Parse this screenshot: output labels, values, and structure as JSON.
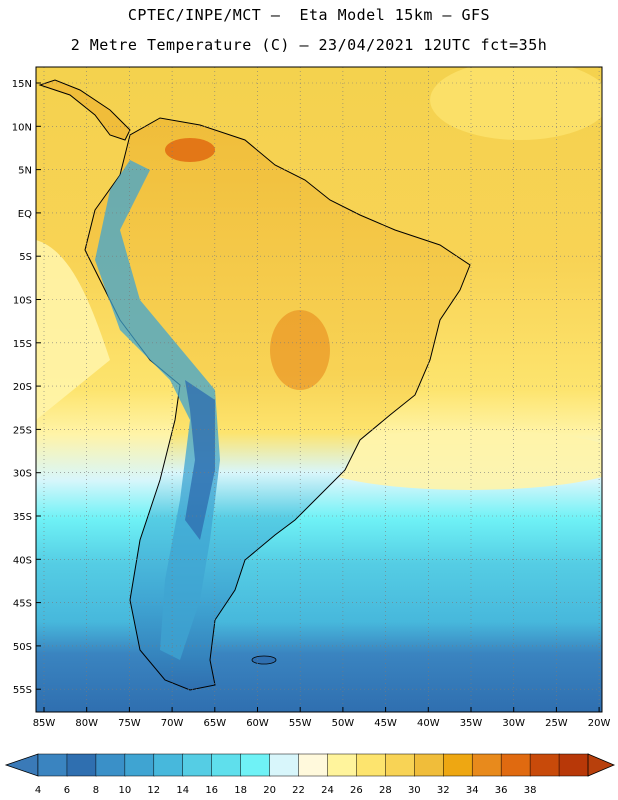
{
  "header": {
    "line1": "CPTEC/INPE/MCT –  Eta Model 15km – GFS",
    "line2": "2 Metre Temperature (C) – 23/04/2021 12UTC fct=35h"
  },
  "axes": {
    "lat_labels": [
      "15N",
      "10N",
      "5N",
      "EQ",
      "5S",
      "10S",
      "15S",
      "20S",
      "25S",
      "30S",
      "35S",
      "40S",
      "45S",
      "50S",
      "55S"
    ],
    "lon_labels": [
      "85W",
      "80W",
      "75W",
      "70W",
      "65W",
      "60W",
      "55W",
      "50W",
      "45W",
      "40W",
      "35W",
      "30W",
      "25W",
      "20W"
    ]
  },
  "colorbar": {
    "values": [
      "4",
      "6",
      "8",
      "10",
      "12",
      "14",
      "16",
      "18",
      "20",
      "22",
      "24",
      "26",
      "28",
      "30",
      "32",
      "34",
      "36",
      "38"
    ],
    "colors": [
      "#3a84c0",
      "#2f6fb0",
      "#3a90c8",
      "#3fa4d2",
      "#47b8dc",
      "#55cde4",
      "#5fdfec",
      "#6ff2f6",
      "#d8f6fb",
      "#fff9dc",
      "#fff49c",
      "#fde46e",
      "#f8d355",
      "#f0bd3a",
      "#eea712",
      "#e88a1c",
      "#e06a10",
      "#c84a0a",
      "#b83808"
    ],
    "left_cap_color": "#3a7ab8",
    "right_cap_color": "#b8400c"
  },
  "map_colors": {
    "ocean_north": "#f4d24e",
    "ocean_band_mid": "#fde46e",
    "ocean_band_pale": "#fff4a8",
    "ocean_south_cyan": "#55cde4",
    "ocean_far_south": "#2f6fb0",
    "land_warm": "#f0bd3a",
    "land_hot": "#e88a1c",
    "andes_cool": "#47b8dc",
    "andes_cold": "#2f6fb0",
    "coast_line": "#000000",
    "grid_line": "#7a7a7a"
  }
}
